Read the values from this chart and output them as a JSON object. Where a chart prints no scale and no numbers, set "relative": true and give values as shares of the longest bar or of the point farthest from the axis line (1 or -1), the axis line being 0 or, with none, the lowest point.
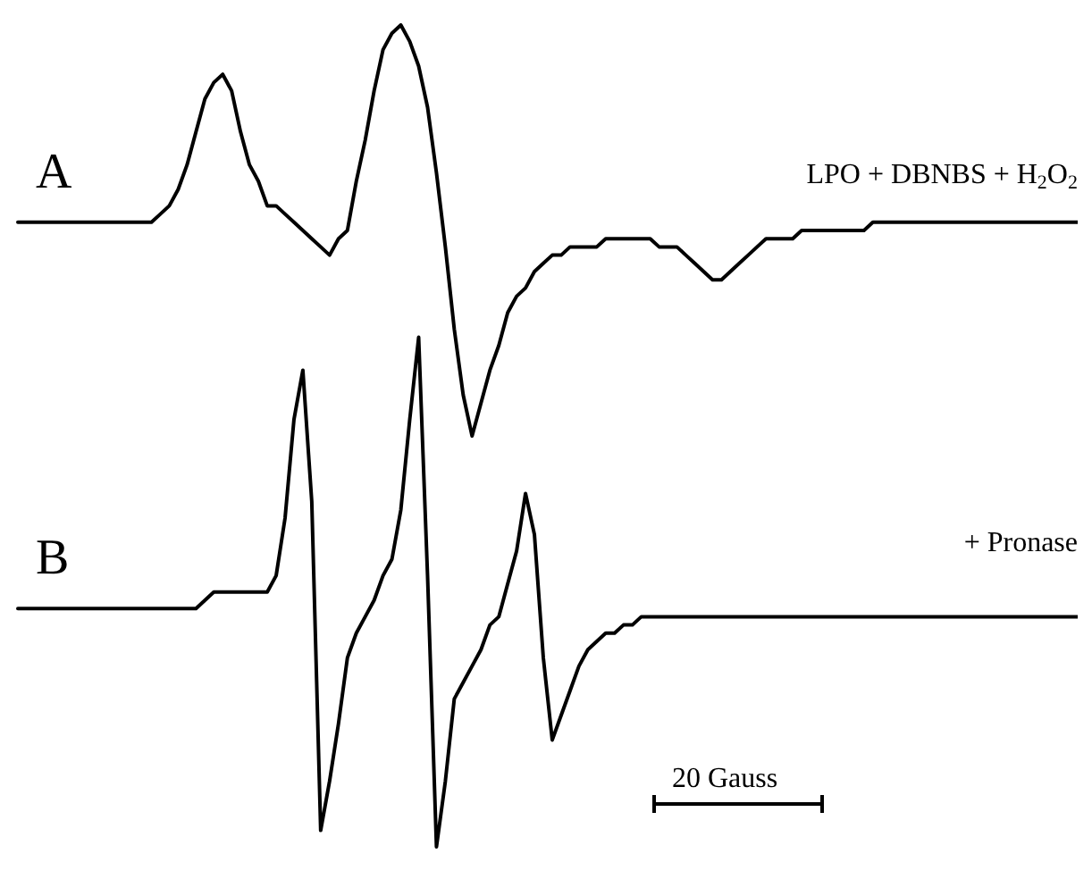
{
  "chart_data": {
    "type": "line",
    "relative": true,
    "marker": "none",
    "categories": [
      null,
      null,
      null,
      null,
      null,
      null,
      null,
      null,
      null,
      null,
      null,
      null,
      null,
      null,
      null,
      null,
      null,
      null,
      null,
      null,
      null,
      null,
      null,
      null,
      null,
      null,
      null,
      null,
      null,
      null,
      null,
      null,
      null,
      null,
      null,
      null,
      null,
      null,
      null,
      null,
      null,
      null,
      null,
      null,
      null,
      null,
      null,
      null,
      null,
      null,
      null,
      null,
      null,
      null,
      null,
      null,
      null,
      null,
      null,
      null,
      null,
      null,
      null,
      null,
      null,
      null,
      null,
      null,
      null,
      null,
      null,
      null,
      null,
      null,
      null,
      null,
      null,
      null,
      null,
      null,
      null,
      null,
      null,
      null,
      null,
      null,
      null,
      null,
      null,
      null,
      null,
      null,
      null,
      null,
      null,
      null,
      null,
      null,
      null,
      null,
      null,
      null,
      null,
      null,
      null,
      null,
      null,
      null,
      null,
      null,
      null,
      null,
      null,
      null,
      null,
      null,
      null,
      null,
      null,
      null
    ],
    "series": [
      {
        "name": "A",
        "color": "#000000",
        "values": [
          0.76,
          0.76,
          0.76,
          0.76,
          0.76,
          0.76,
          0.76,
          0.76,
          0.76,
          0.76,
          0.76,
          0.76,
          0.76,
          0.76,
          0.76,
          0.76,
          0.77,
          0.78,
          0.8,
          0.83,
          0.87,
          0.91,
          0.93,
          0.94,
          0.92,
          0.87,
          0.83,
          0.81,
          0.78,
          0.78,
          0.77,
          0.76,
          0.75,
          0.74,
          0.73,
          0.72,
          0.74,
          0.75,
          0.81,
          0.86,
          0.92,
          0.97,
          0.99,
          1.0,
          0.98,
          0.95,
          0.9,
          0.82,
          0.73,
          0.63,
          0.55,
          0.5,
          0.54,
          0.58,
          0.61,
          0.65,
          0.67,
          0.68,
          0.7,
          0.71,
          0.72,
          0.72,
          0.73,
          0.73,
          0.73,
          0.73,
          0.74,
          0.74,
          0.74,
          0.74,
          0.74,
          0.74,
          0.73,
          0.73,
          0.73,
          0.72,
          0.71,
          0.7,
          0.69,
          0.69,
          0.7,
          0.71,
          0.72,
          0.73,
          0.74,
          0.74,
          0.74,
          0.74,
          0.75,
          0.75,
          0.75,
          0.75,
          0.75,
          0.75,
          0.75,
          0.75,
          0.76,
          0.76,
          0.76,
          0.76,
          0.76,
          0.76,
          0.76,
          0.76,
          0.76,
          0.76,
          0.76,
          0.76,
          0.76,
          0.76,
          0.76,
          0.76,
          0.76,
          0.76,
          0.76,
          0.76,
          0.76,
          0.76,
          0.76,
          0.76
        ]
      },
      {
        "name": "B",
        "color": "#000000",
        "values": [
          0.29,
          0.29,
          0.29,
          0.29,
          0.29,
          0.29,
          0.29,
          0.29,
          0.29,
          0.29,
          0.29,
          0.29,
          0.29,
          0.29,
          0.29,
          0.29,
          0.29,
          0.29,
          0.29,
          0.29,
          0.29,
          0.3,
          0.31,
          0.31,
          0.31,
          0.31,
          0.31,
          0.31,
          0.31,
          0.33,
          0.4,
          0.52,
          0.58,
          0.42,
          0.02,
          0.08,
          0.15,
          0.23,
          0.26,
          0.28,
          0.3,
          0.33,
          0.35,
          0.41,
          0.52,
          0.62,
          0.33,
          0,
          0.08,
          0.18,
          0.2,
          0.22,
          0.24,
          0.27,
          0.28,
          0.32,
          0.36,
          0.43,
          0.38,
          0.23,
          0.13,
          0.16,
          0.19,
          0.22,
          0.24,
          0.25,
          0.26,
          0.26,
          0.27,
          0.27,
          0.28,
          0.28,
          0.28,
          0.28,
          0.28,
          0.28,
          0.28,
          0.28,
          0.28,
          0.28,
          0.28,
          0.28,
          0.28,
          0.28,
          0.28,
          0.28,
          0.28,
          0.28,
          0.28,
          0.28,
          0.28,
          0.28,
          0.28,
          0.28,
          0.28,
          0.28,
          0.28,
          0.28,
          0.28,
          0.28,
          0.28,
          0.28,
          0.28,
          0.28,
          0.28,
          0.28,
          0.28,
          0.28,
          0.28,
          0.28,
          0.28,
          0.28,
          0.28,
          0.28,
          0.28,
          0.28,
          0.28,
          0.28,
          0.28,
          0.28
        ]
      }
    ],
    "annotations": [
      "LPO + DBNBS + H$_{2}$O$_{2}$",
      "+ Pronase",
      "20 Gauss"
    ]
  }
}
